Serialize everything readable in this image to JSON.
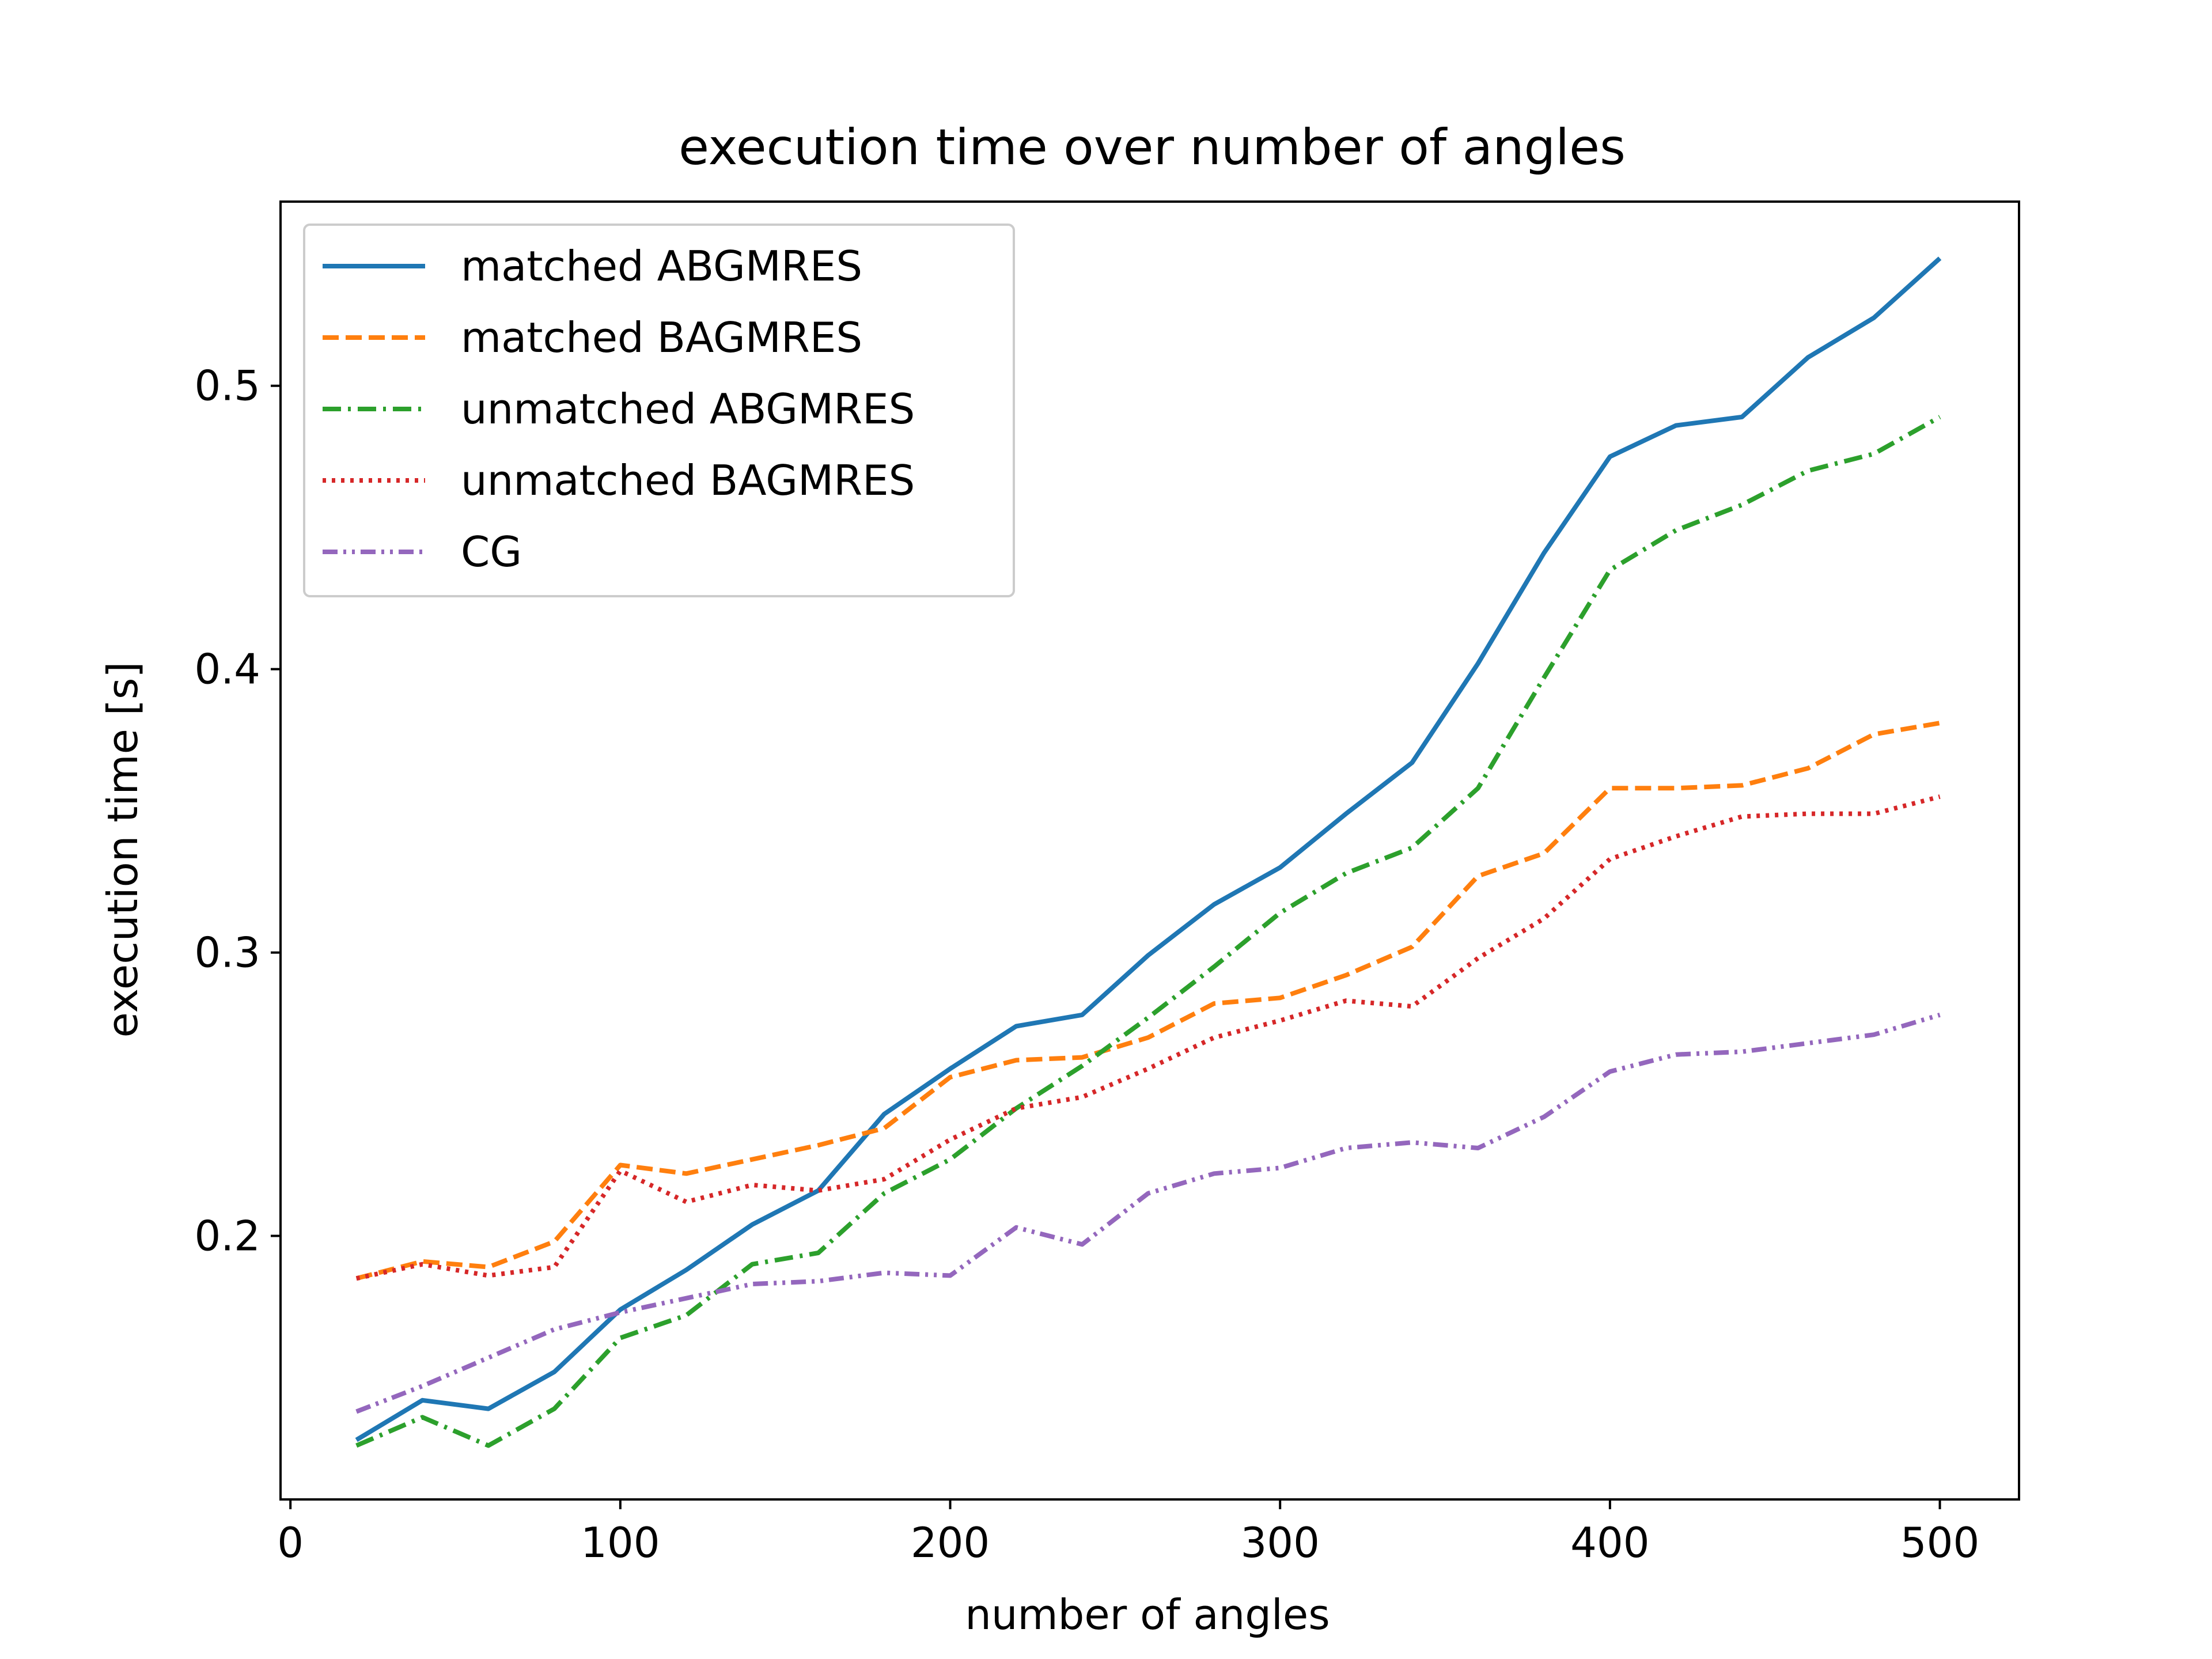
{
  "chart_data": {
    "type": "line",
    "title": "execution time over number of angles",
    "xlabel": "number of angles",
    "ylabel": "execution time [s]",
    "xlim": [
      -3,
      524
    ],
    "ylim": [
      0.107,
      0.565
    ],
    "xticks": [
      0,
      100,
      200,
      300,
      400,
      500
    ],
    "xtick_labels": [
      "0",
      "100",
      "200",
      "300",
      "400",
      "500"
    ],
    "yticks": [
      0.2,
      0.3,
      0.4,
      0.5
    ],
    "ytick_labels": [
      "0.2",
      "0.3",
      "0.4",
      "0.5"
    ],
    "grid": false,
    "legend_position": "top-left",
    "x": [
      20,
      40,
      60,
      80,
      100,
      120,
      140,
      160,
      180,
      200,
      220,
      240,
      260,
      280,
      300,
      320,
      340,
      360,
      380,
      400,
      420,
      440,
      460,
      480,
      500
    ],
    "series": [
      {
        "name": "matched ABGMRES",
        "color": "#1f77b4",
        "style": "solid",
        "values": [
          0.128,
          0.142,
          0.139,
          0.152,
          0.174,
          0.188,
          0.204,
          0.216,
          0.243,
          0.259,
          0.274,
          0.278,
          0.299,
          0.317,
          0.33,
          0.349,
          0.367,
          0.402,
          0.441,
          0.475,
          0.486,
          0.489,
          0.51,
          0.524,
          0.545
        ]
      },
      {
        "name": "matched BAGMRES",
        "color": "#ff7f0e",
        "style": "dashed",
        "values": [
          0.185,
          0.191,
          0.189,
          0.198,
          0.225,
          0.222,
          0.227,
          0.232,
          0.238,
          0.256,
          0.262,
          0.263,
          0.27,
          0.282,
          0.284,
          0.292,
          0.302,
          0.327,
          0.335,
          0.358,
          0.358,
          0.359,
          0.365,
          0.377,
          0.381
        ]
      },
      {
        "name": "unmatched ABGMRES",
        "color": "#2ca02c",
        "style": "dashdot",
        "values": [
          0.126,
          0.136,
          0.126,
          0.139,
          0.164,
          0.172,
          0.19,
          0.194,
          0.215,
          0.227,
          0.245,
          0.26,
          0.277,
          0.295,
          0.314,
          0.328,
          0.337,
          0.358,
          0.397,
          0.435,
          0.449,
          0.458,
          0.47,
          0.476,
          0.489
        ]
      },
      {
        "name": "unmatched BAGMRES",
        "color": "#d62728",
        "style": "dotted",
        "values": [
          0.185,
          0.19,
          0.186,
          0.189,
          0.223,
          0.212,
          0.218,
          0.216,
          0.22,
          0.234,
          0.245,
          0.249,
          0.259,
          0.27,
          0.276,
          0.283,
          0.281,
          0.298,
          0.312,
          0.333,
          0.341,
          0.348,
          0.349,
          0.349,
          0.355
        ]
      },
      {
        "name": "CG",
        "color": "#9467bd",
        "style": "dashdotdot",
        "values": [
          0.138,
          0.147,
          0.157,
          0.167,
          0.173,
          0.178,
          0.183,
          0.184,
          0.187,
          0.186,
          0.203,
          0.197,
          0.215,
          0.222,
          0.224,
          0.231,
          0.233,
          0.231,
          0.242,
          0.258,
          0.264,
          0.265,
          0.268,
          0.271,
          0.278
        ]
      }
    ]
  }
}
